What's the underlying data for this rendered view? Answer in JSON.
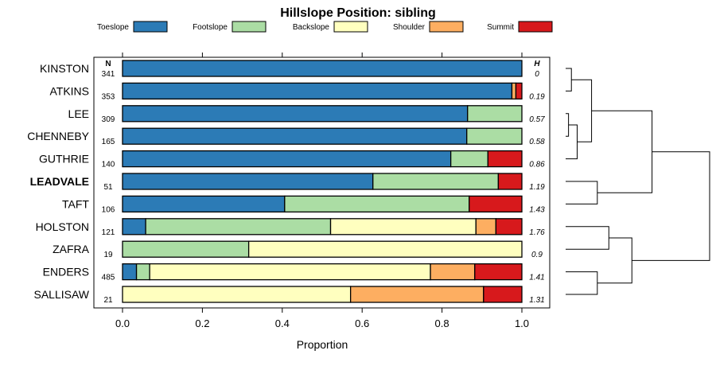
{
  "chart_data": {
    "type": "bar",
    "orientation": "horizontal",
    "stacked": true,
    "title": "Hillslope Position: sibling",
    "xlabel": "Proportion",
    "ylabel": "",
    "xlim": [
      0,
      1
    ],
    "xticks": [
      "0.0",
      "0.2",
      "0.4",
      "0.6",
      "0.8",
      "1.0"
    ],
    "xtick_values": [
      0,
      0.2,
      0.4,
      0.6,
      0.8,
      1.0
    ],
    "n_header": "N",
    "h_header": "H",
    "highlight": "LEADVALE",
    "legend_position": "top",
    "series": [
      {
        "name": "Toeslope",
        "color": "#2c7bb6"
      },
      {
        "name": "Footslope",
        "color": "#abdda4"
      },
      {
        "name": "Backslope",
        "color": "#ffffbf"
      },
      {
        "name": "Shoulder",
        "color": "#fdae61"
      },
      {
        "name": "Summit",
        "color": "#d7191c"
      }
    ],
    "categories": [
      "KINSTON",
      "ATKINS",
      "LEE",
      "CHENNEBY",
      "GUTHRIE",
      "LEADVALE",
      "TAFT",
      "HOLSTON",
      "ZAFRA",
      "ENDERS",
      "SALLISAW"
    ],
    "n": [
      "341",
      "353",
      "309",
      "165",
      "140",
      "51",
      "106",
      "121",
      "19",
      "485",
      "21"
    ],
    "h": [
      "0",
      "0.19",
      "0.57",
      "0.58",
      "0.86",
      "1.19",
      "1.43",
      "1.76",
      "0.9",
      "1.41",
      "1.31"
    ],
    "values": [
      [
        1.0,
        0.0,
        0.0,
        0.0,
        0.0
      ],
      [
        0.975,
        0.0,
        0.0,
        0.01,
        0.015
      ],
      [
        0.864,
        0.136,
        0.0,
        0.0,
        0.0
      ],
      [
        0.862,
        0.138,
        0.0,
        0.0,
        0.0
      ],
      [
        0.822,
        0.093,
        0.0,
        0.0,
        0.085
      ],
      [
        0.627,
        0.314,
        0.0,
        0.0,
        0.059
      ],
      [
        0.406,
        0.462,
        0.0,
        0.0,
        0.132
      ],
      [
        0.058,
        0.463,
        0.364,
        0.05,
        0.065
      ],
      [
        0.0,
        0.316,
        0.684,
        0.0,
        0.0
      ],
      [
        0.035,
        0.033,
        0.703,
        0.111,
        0.118
      ],
      [
        0.0,
        0.0,
        0.571,
        0.333,
        0.096
      ]
    ],
    "dendrogram": {
      "leaves": [
        "KINSTON",
        "ATKINS",
        "LEE",
        "CHENNEBY",
        "GUTHRIE",
        "LEADVALE",
        "TAFT",
        "HOLSTON",
        "ZAFRA",
        "ENDERS",
        "SALLISAW"
      ],
      "merges": [
        [
          0,
          1,
          0.02
        ],
        [
          2,
          3,
          0.01
        ],
        [
          -2,
          4,
          0.04
        ],
        [
          -1,
          -3,
          0.09
        ],
        [
          5,
          6,
          0.11
        ],
        [
          -4,
          -5,
          0.3
        ],
        [
          7,
          8,
          0.15
        ],
        [
          9,
          10,
          0.11
        ],
        [
          -7,
          -8,
          0.23
        ],
        [
          -6,
          -9,
          0.5
        ]
      ],
      "max_height": 0.5
    }
  }
}
